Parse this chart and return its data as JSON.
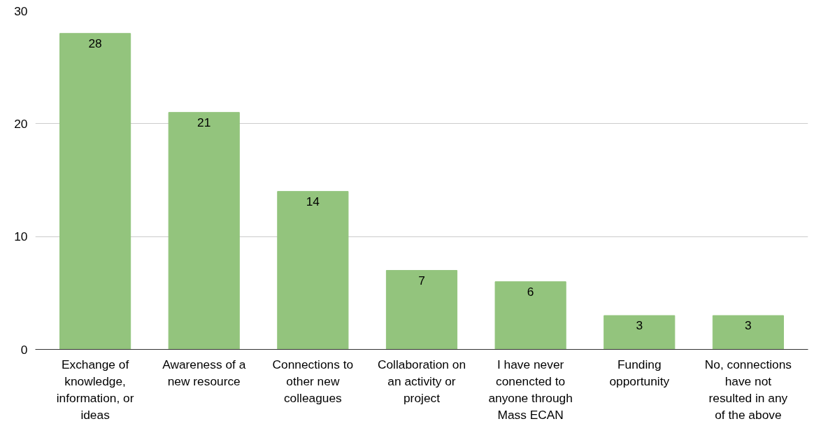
{
  "chart_data": {
    "type": "bar",
    "categories": [
      "Exchange of knowledge, information, or ideas",
      "Awareness of a new resource",
      "Connections to other new colleagues",
      "Collaboration on an activity or project",
      "I have never conencted to anyone through Mass ECAN",
      "Funding opportunity",
      "No, connections have not resulted in any of the above"
    ],
    "values": [
      28,
      21,
      14,
      7,
      6,
      3,
      3
    ],
    "color": "#93c47d",
    "ylim": [
      0,
      30
    ],
    "yticks": [
      0,
      10,
      20,
      30
    ],
    "grid": "y",
    "data_labels": true
  }
}
